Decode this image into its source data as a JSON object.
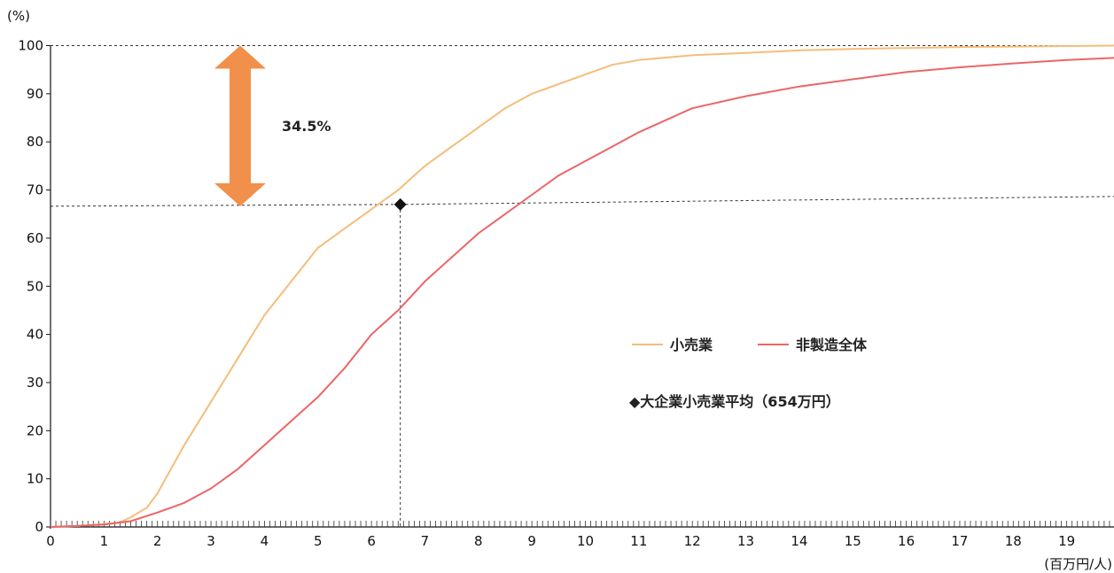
{
  "chart_data": {
    "type": "line",
    "y_unit_label": "(%)",
    "x_unit_label": "(百万円/人)",
    "xlim": [
      0,
      20
    ],
    "ylim": [
      0,
      100
    ],
    "x_ticks": [
      0,
      1,
      2,
      3,
      4,
      5,
      6,
      7,
      8,
      9,
      10,
      11,
      12,
      13,
      14,
      15,
      16,
      17,
      18,
      19
    ],
    "y_ticks": [
      0,
      10,
      20,
      30,
      40,
      50,
      60,
      70,
      80,
      90,
      100
    ],
    "series": [
      {
        "name": "小売業",
        "color": "#f5bd7a",
        "x": [
          0,
          0.5,
          1,
          1.3,
          1.5,
          1.8,
          2,
          2.2,
          2.5,
          3,
          3.5,
          4,
          4.5,
          5,
          5.5,
          6,
          6.5,
          7,
          7.5,
          8,
          8.5,
          9,
          9.5,
          10,
          10.5,
          11,
          12,
          13,
          14,
          15,
          16,
          17,
          18,
          19,
          20
        ],
        "y": [
          0,
          0.2,
          0.6,
          1,
          2,
          4,
          7,
          11,
          17,
          26,
          35,
          44,
          51,
          58,
          62,
          66,
          70,
          75,
          79,
          83,
          87,
          90,
          92,
          94,
          96,
          97,
          98,
          98.5,
          99,
          99.3,
          99.5,
          99.7,
          99.8,
          99.9,
          100
        ]
      },
      {
        "name": "非製造全体",
        "color": "#ec6566",
        "x": [
          0,
          0.5,
          1,
          1.5,
          2,
          2.5,
          3,
          3.5,
          4,
          4.5,
          5,
          5.5,
          6,
          6.5,
          7,
          7.5,
          8,
          8.5,
          9,
          9.5,
          10,
          10.5,
          11,
          12,
          13,
          14,
          15,
          16,
          17,
          18,
          19,
          20
        ],
        "y": [
          0,
          0.2,
          0.5,
          1.2,
          3,
          5,
          8,
          12,
          17,
          22,
          27,
          33,
          40,
          45,
          51,
          56,
          61,
          65,
          69,
          73,
          76,
          79,
          82,
          87,
          89.5,
          91.5,
          93,
          94.5,
          95.5,
          96.3,
          97,
          97.5
        ]
      }
    ],
    "marker": {
      "label": "◆大企業小売業平均（654万円）",
      "x": 6.54,
      "y": 67
    },
    "annotation": {
      "text": "34.5%",
      "arrow_color": "#f0904a",
      "y_from": 67,
      "y_to": 100
    },
    "legend_position": "center-right",
    "grid": false
  }
}
